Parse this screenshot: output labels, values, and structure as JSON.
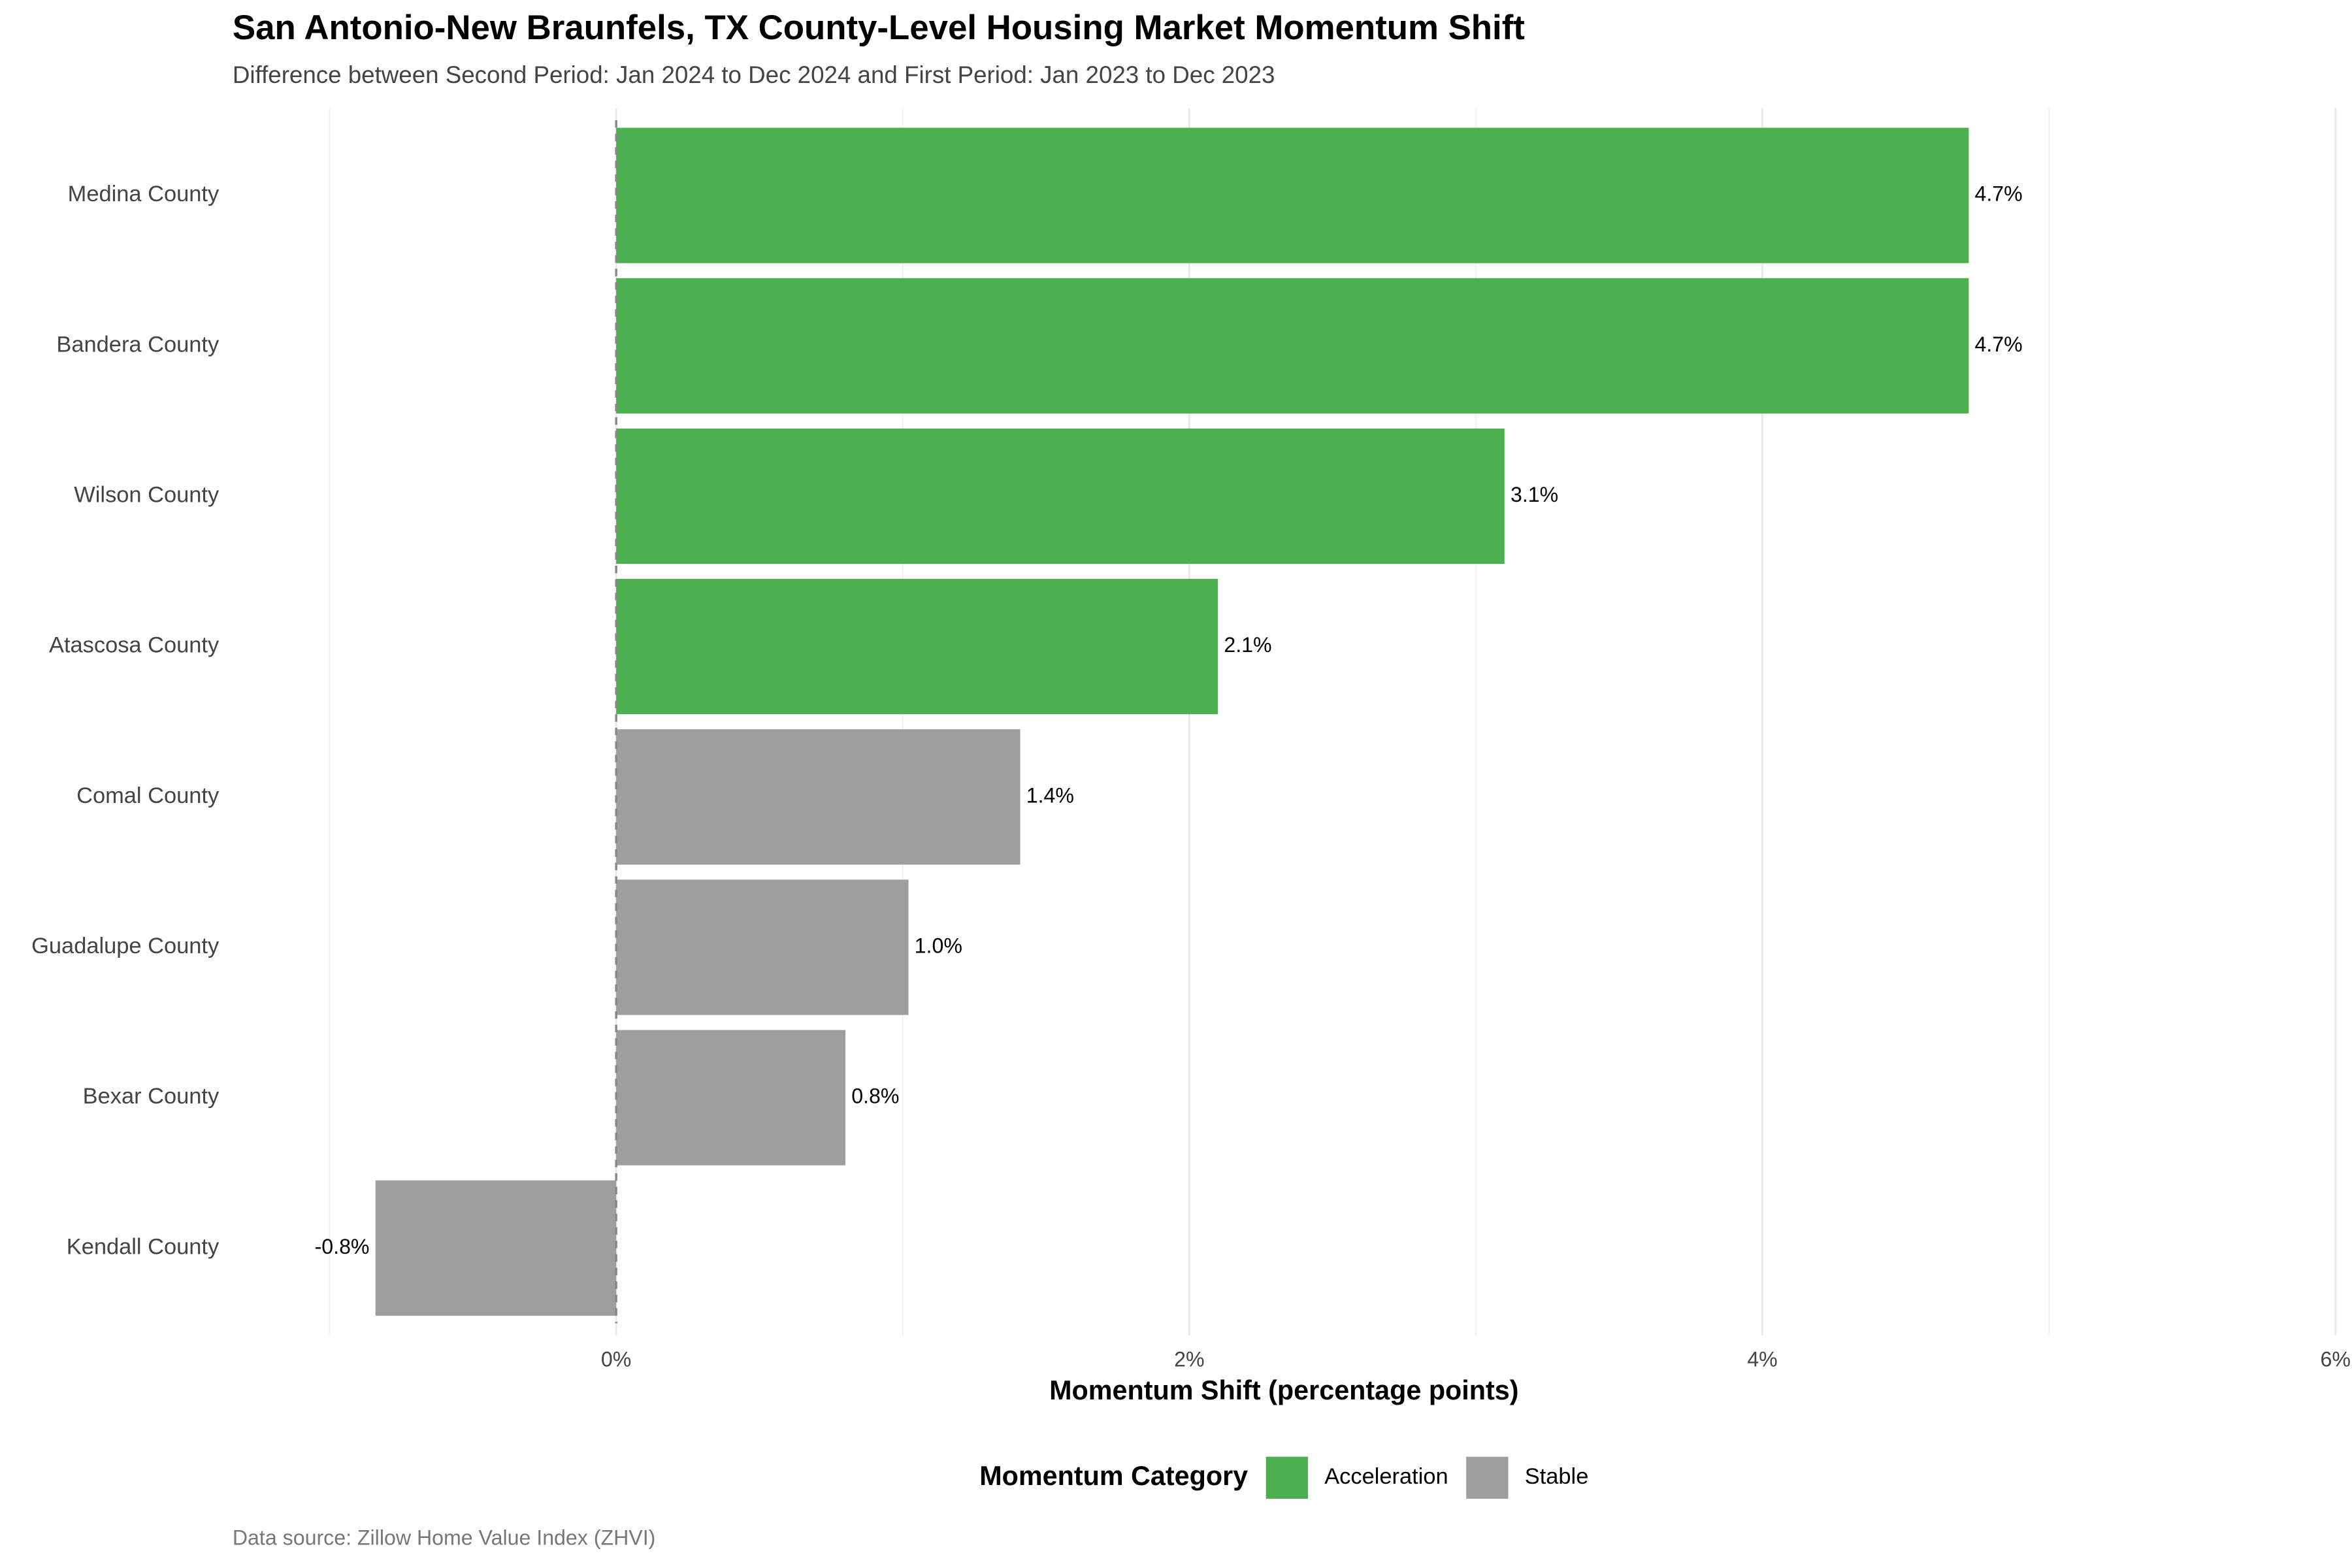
{
  "chart_data": {
    "type": "bar",
    "orientation": "horizontal",
    "title": "San Antonio-New Braunfels, TX County-Level Housing Market Momentum Shift",
    "subtitle": "Difference between Second Period: Jan 2024 to Dec 2024 and First Period: Jan 2023 to Dec 2023",
    "x_label": "Momentum Shift (percentage points)",
    "caption": "Data source: Zillow Home Value Index (ZHVI)",
    "categories": [
      "Medina County",
      "Bandera County",
      "Wilson County",
      "Atascosa County",
      "Comal County",
      "Guadalupe County",
      "Bexar County",
      "Kendall County"
    ],
    "values": [
      4.72,
      4.72,
      3.1,
      2.1,
      1.41,
      1.02,
      0.8,
      -0.84
    ],
    "value_labels": [
      "4.7%",
      "4.7%",
      "3.1%",
      "2.1%",
      "1.4%",
      "1.0%",
      "0.8%",
      "-0.8%"
    ],
    "bar_groups": [
      "Acceleration",
      "Acceleration",
      "Acceleration",
      "Acceleration",
      "Stable",
      "Stable",
      "Stable",
      "Stable"
    ],
    "legend": {
      "title": "Momentum Category",
      "position": "bottom",
      "items": [
        {
          "name": "Acceleration",
          "color": "#4caf50"
        },
        {
          "name": "Stable",
          "color": "#9e9e9e"
        }
      ]
    },
    "xlim": [
      -1.14,
      6
    ],
    "xticks": [
      {
        "value": 0,
        "label": "0%"
      },
      {
        "value": 2,
        "label": "2%"
      },
      {
        "value": 4,
        "label": "4%"
      },
      {
        "value": 6,
        "label": "6%"
      }
    ],
    "minor_xticks": [
      -1,
      1,
      3,
      5
    ],
    "reference_line": 0,
    "grid": true
  }
}
